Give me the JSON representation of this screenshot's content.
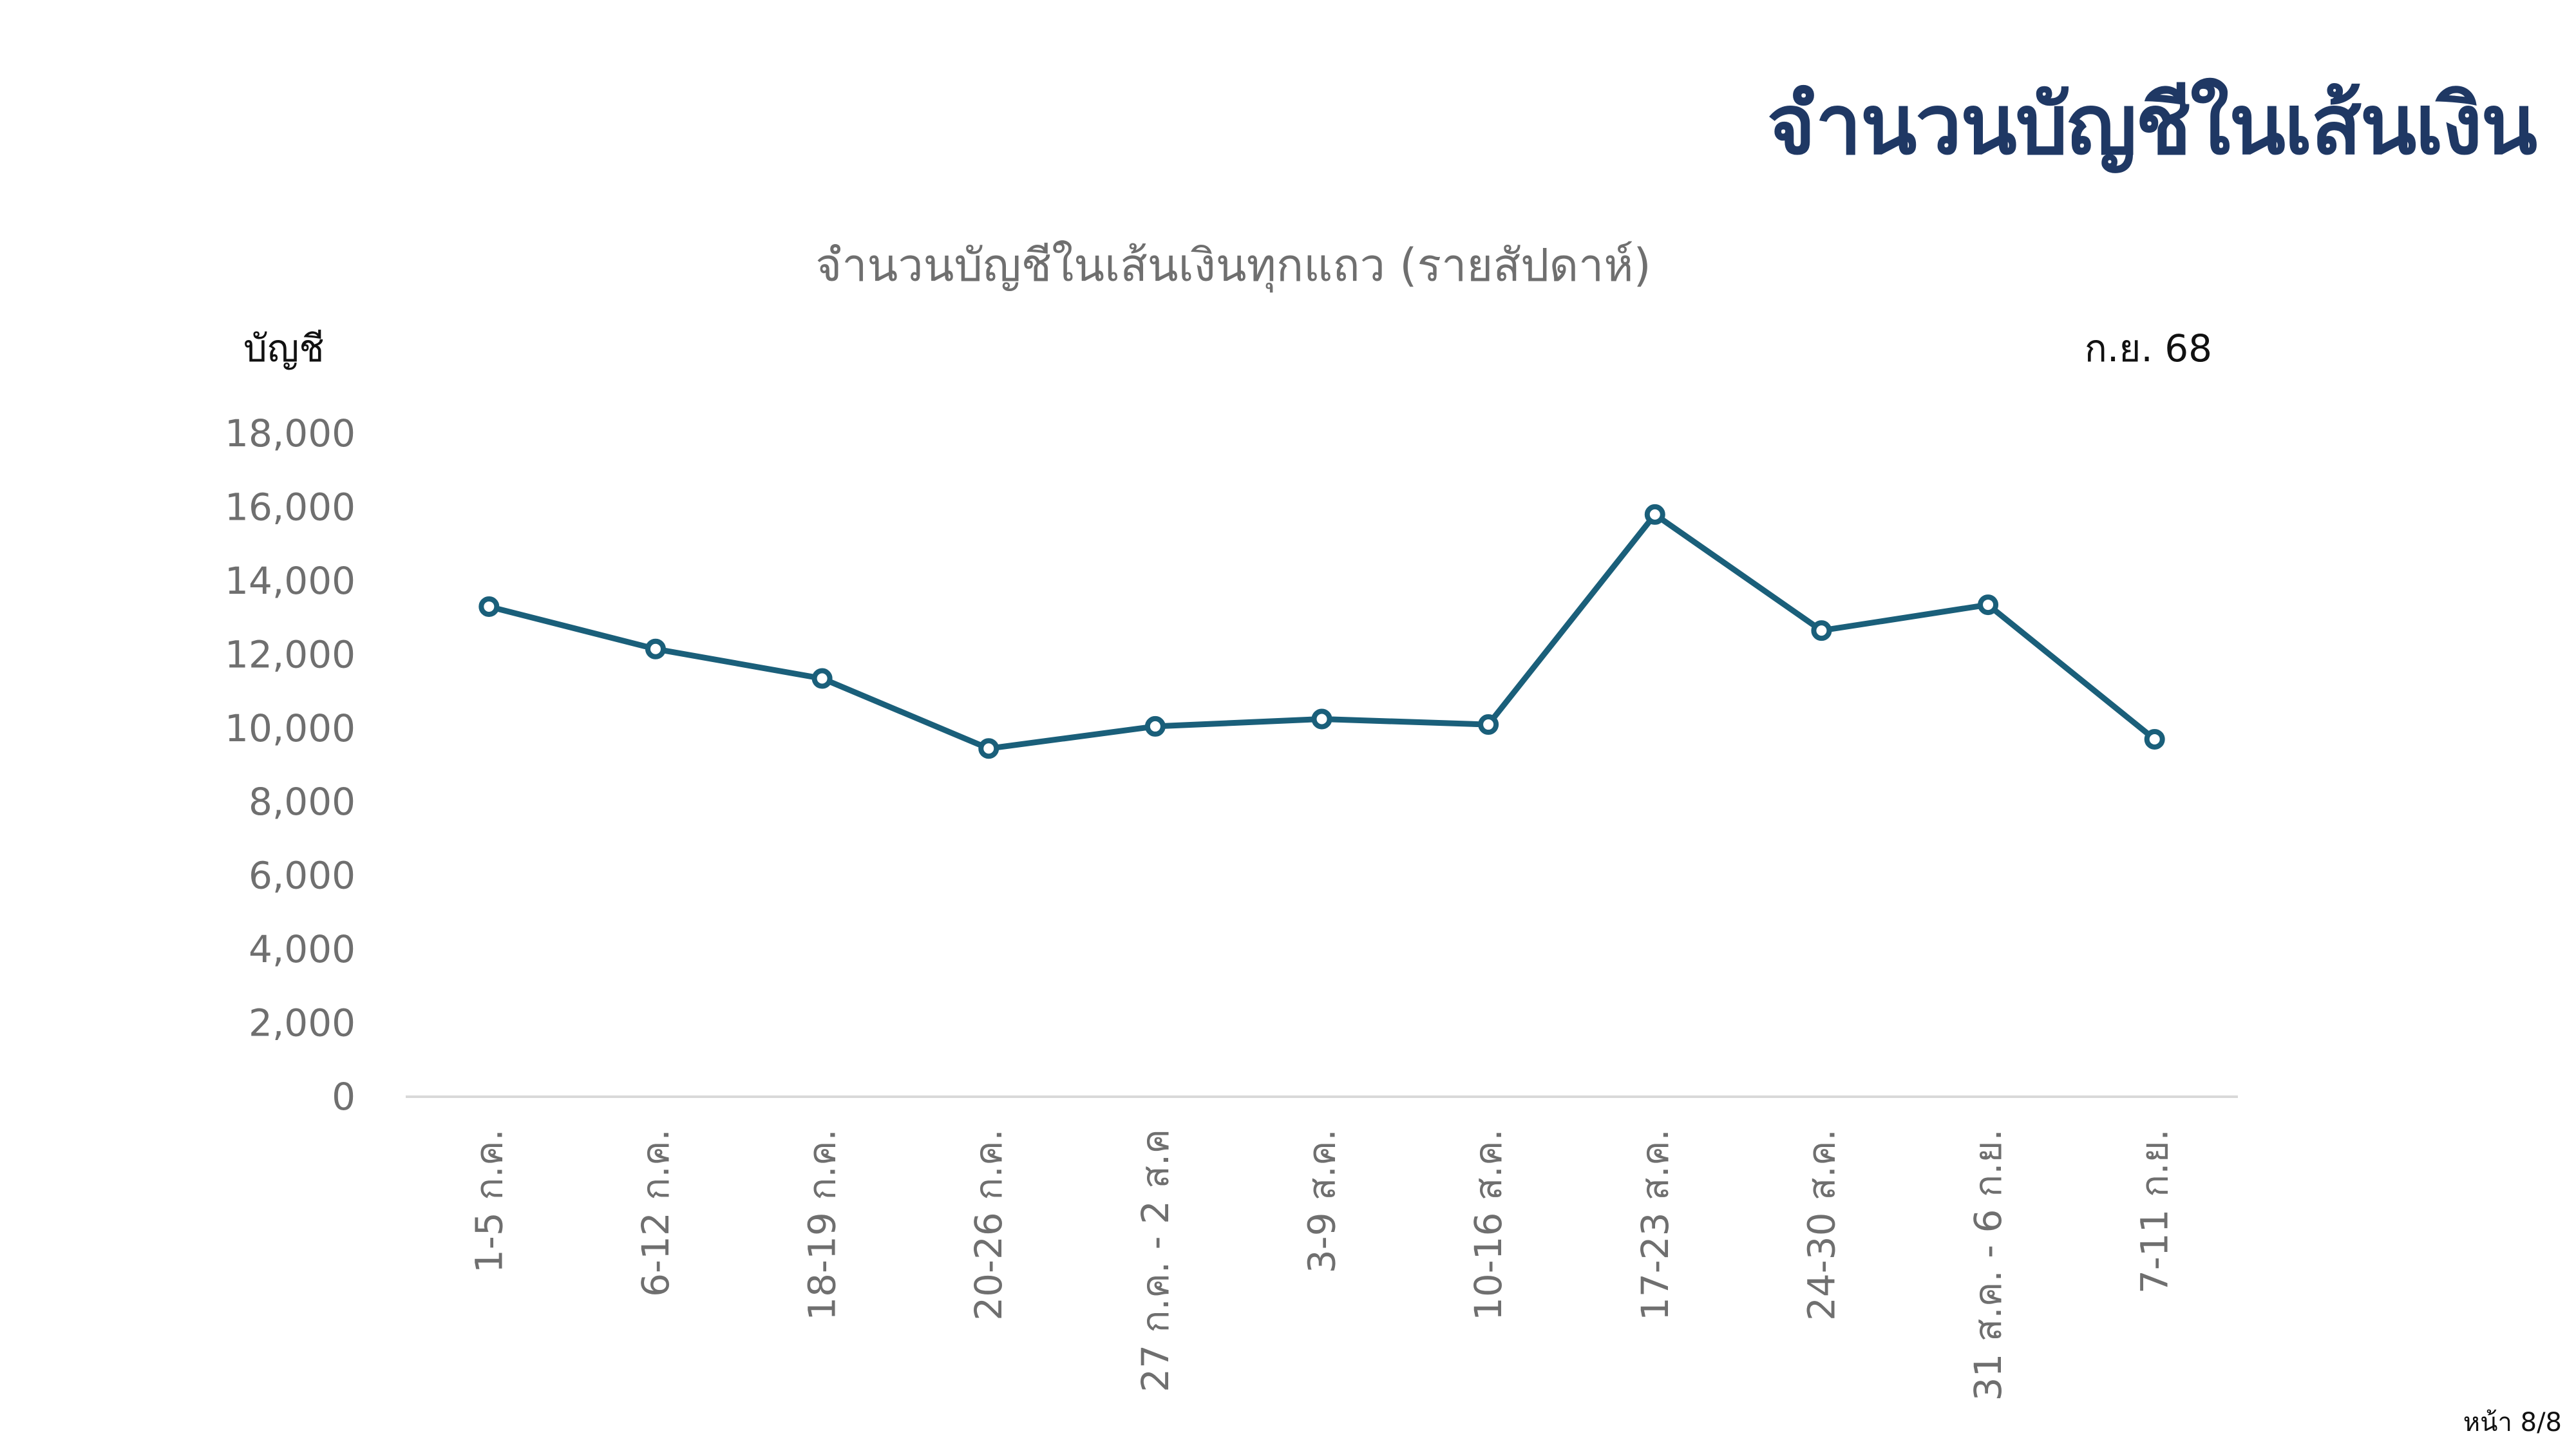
{
  "slide": {
    "title": "จำนวนบัญชีในเส้นเงิน",
    "page_number": "หน้า 8/8"
  },
  "chart": {
    "y_unit": "บัญชี",
    "period": "ก.ย. 68"
  },
  "colors": {
    "title": "#1f3864",
    "series_line": "#1a5f7a",
    "axis_text": "#6f6f6f",
    "axis_line": "#d9d9d9"
  },
  "chart_data": {
    "type": "line",
    "title": "จำนวนบัญชีในเส้นเงินทุกแถว (รายสัปดาห์)",
    "ylabel": "บัญชี",
    "xlabel": "",
    "categories": [
      "1-5 ก.ค.",
      "6-12 ก.ค.",
      "18-19 ก.ค.",
      "20-26 ก.ค.",
      "27 ก.ค. - 2 ส.ค",
      "3-9 ส.ค.",
      "10-16 ส.ค.",
      "17-23 ส.ค.",
      "24-30 ส.ค.",
      "31 ส.ค. - 6 ก.ย.",
      "7-11 ก.ย."
    ],
    "values": [
      13300,
      12150,
      11350,
      9450,
      10050,
      10250,
      10100,
      15800,
      12650,
      13350,
      9700
    ],
    "ylim": [
      0,
      18000
    ],
    "yticks": [
      "0",
      "2,000",
      "4,000",
      "6,000",
      "8,000",
      "10,000",
      "12,000",
      "14,000",
      "16,000",
      "18,000"
    ],
    "ytick_values": [
      0,
      2000,
      4000,
      6000,
      8000,
      10000,
      12000,
      14000,
      16000,
      18000
    ],
    "grid": false,
    "legend": "none",
    "markers": "hollow-circle"
  }
}
